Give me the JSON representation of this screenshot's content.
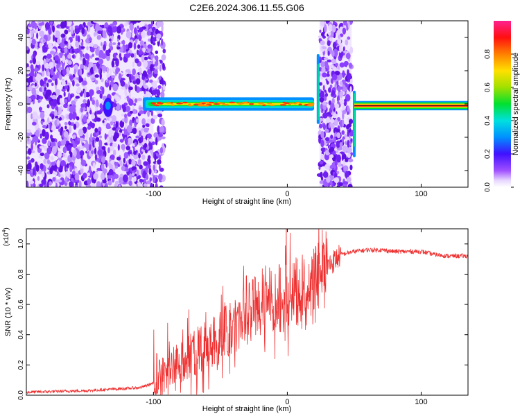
{
  "title": "C2E6.2024.306.11.55.G06",
  "chart_data": [
    {
      "type": "heatmap",
      "xlabel": "Height of straight line (km)",
      "ylabel": "Frequency (Hz)",
      "xlim": [
        -195,
        135
      ],
      "ylim": [
        -50,
        50
      ],
      "xticks": [
        -100,
        0,
        100
      ],
      "xtick_labels": [
        "-100",
        "0",
        "100"
      ],
      "yticks": [
        -40,
        -20,
        0,
        20,
        40
      ],
      "ytick_labels": [
        "-40",
        "-20",
        "0",
        "20",
        "40"
      ],
      "colorbar": {
        "label": "Normalized spectral amplitude",
        "range": [
          0,
          1
        ],
        "ticks": [
          0.0,
          0.2,
          0.4,
          0.6,
          0.8
        ],
        "tick_labels": [
          "0.0",
          "0.2",
          "0.4",
          "0.6",
          "0.8"
        ]
      },
      "features": [
        {
          "x_range": [
            -195,
            -100
          ],
          "description_value": "scattered low amplitude noise"
        },
        {
          "x_range": [
            -108,
            20
          ],
          "y_center": 0,
          "amplitude_peak": 1.0
        },
        {
          "x_range": [
            24,
            48
          ],
          "description_value": "scattered low amplitude noise"
        },
        {
          "x_range": [
            50,
            135
          ],
          "y_center": -1,
          "amplitude_peak": 1.0
        }
      ]
    },
    {
      "type": "line",
      "xlabel": "Height of straight line (km)",
      "ylabel": "SNR (10 * v/v)",
      "multiplier_label": "(x10",
      "multiplier_exp": "4",
      "xlim": [
        -195,
        135
      ],
      "ylim": [
        0,
        1.1
      ],
      "xticks": [
        -100,
        0,
        100
      ],
      "xtick_labels": [
        "-100",
        "0",
        "100"
      ],
      "yticks": [
        0.0,
        0.2,
        0.4,
        0.6,
        0.8,
        1.0
      ],
      "ytick_labels": [
        "0.0",
        "0.2",
        "0.4",
        "0.6",
        "0.8",
        "1.0"
      ],
      "series": [
        {
          "color": "#ff3030",
          "x": [
            -195,
            -150,
            -130,
            -110,
            -100,
            -90,
            -80,
            -70,
            -60,
            -50,
            -40,
            -30,
            -20,
            -10,
            0,
            10,
            20,
            30,
            40,
            50,
            60,
            70,
            80,
            90,
            100,
            110,
            120,
            135
          ],
          "y": [
            0.02,
            0.03,
            0.04,
            0.05,
            0.08,
            0.15,
            0.22,
            0.28,
            0.33,
            0.38,
            0.45,
            0.55,
            0.6,
            0.63,
            0.66,
            0.68,
            0.72,
            0.85,
            0.93,
            0.95,
            0.96,
            0.96,
            0.95,
            0.95,
            0.95,
            0.93,
            0.92,
            0.92
          ]
        }
      ]
    }
  ]
}
